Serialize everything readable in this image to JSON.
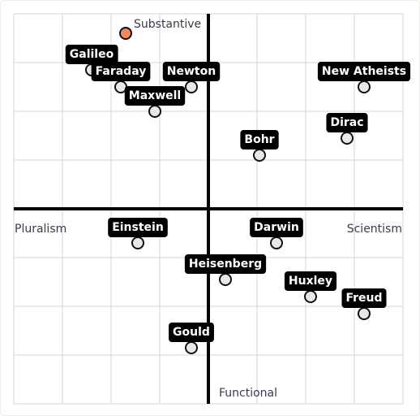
{
  "chart_data": {
    "type": "scatter",
    "title": "",
    "xlim": [
      -4,
      4
    ],
    "ylim": [
      -4,
      4
    ],
    "grid": true,
    "axis_labels": {
      "top": "Substantive",
      "bottom": "Functional",
      "left": "Pluralism",
      "right": "Scientism"
    },
    "points": [
      {
        "label": "Galileo",
        "x": -2.4,
        "y": 2.85
      },
      {
        "label": "Faraday",
        "x": -1.8,
        "y": 2.5
      },
      {
        "label": "Newton",
        "x": -0.35,
        "y": 2.5
      },
      {
        "label": "Maxwell",
        "x": -1.1,
        "y": 2.0
      },
      {
        "label": "New Atheists",
        "x": 3.2,
        "y": 2.5
      },
      {
        "label": "Dirac",
        "x": 2.85,
        "y": 1.45
      },
      {
        "label": "Bohr",
        "x": 1.05,
        "y": 1.1
      },
      {
        "label": "Einstein",
        "x": -1.45,
        "y": -0.7
      },
      {
        "label": "Darwin",
        "x": 1.4,
        "y": -0.7
      },
      {
        "label": "Heisenberg",
        "x": 0.35,
        "y": -1.45
      },
      {
        "label": "Huxley",
        "x": 2.1,
        "y": -1.8
      },
      {
        "label": "Freud",
        "x": 3.2,
        "y": -2.15
      },
      {
        "label": "Gould",
        "x": -0.35,
        "y": -2.85
      }
    ],
    "highlight_point": {
      "x": -1.7,
      "y": 3.6
    }
  },
  "colors": {
    "grid": "#d4d4d4",
    "axis": "#000000",
    "point_fill": "#e8e8e8",
    "point_stroke": "#111111",
    "label_bg": "#000000",
    "label_text": "#ffffff",
    "highlight_fill": "#f08a5d"
  }
}
